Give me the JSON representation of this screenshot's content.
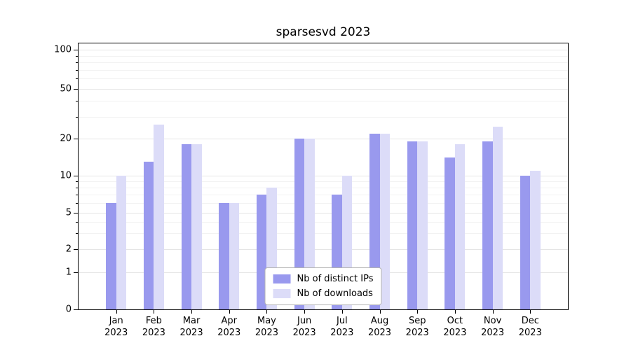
{
  "title": "sparsesvd 2023",
  "chart_data": {
    "type": "bar",
    "title": "sparsesvd 2023",
    "categories": [
      "Jan 2023",
      "Feb 2023",
      "Mar 2023",
      "Apr 2023",
      "May 2023",
      "Jun 2023",
      "Jul 2023",
      "Aug 2023",
      "Sep 2023",
      "Oct 2023",
      "Nov 2023",
      "Dec 2023"
    ],
    "series": [
      {
        "name": "Nb of distinct IPs",
        "color": "#9999ee",
        "values": [
          6,
          13,
          18,
          6,
          7,
          20,
          7,
          22,
          19,
          14,
          19,
          10
        ]
      },
      {
        "name": "Nb of downloads",
        "color": "#dcdcf8",
        "values": [
          10,
          26,
          18,
          6,
          8,
          20,
          10,
          22,
          19,
          18,
          25,
          11
        ]
      }
    ],
    "yscale": "symlog",
    "yticks": [
      0,
      1,
      2,
      5,
      10,
      20,
      50,
      100
    ],
    "minor_yticks": [
      3,
      4,
      6,
      7,
      8,
      9,
      30,
      40,
      60,
      70,
      80,
      90
    ],
    "ylim": [
      0,
      110
    ],
    "xlabel": "",
    "ylabel": "",
    "grid": true,
    "legend_position": "lower center"
  }
}
